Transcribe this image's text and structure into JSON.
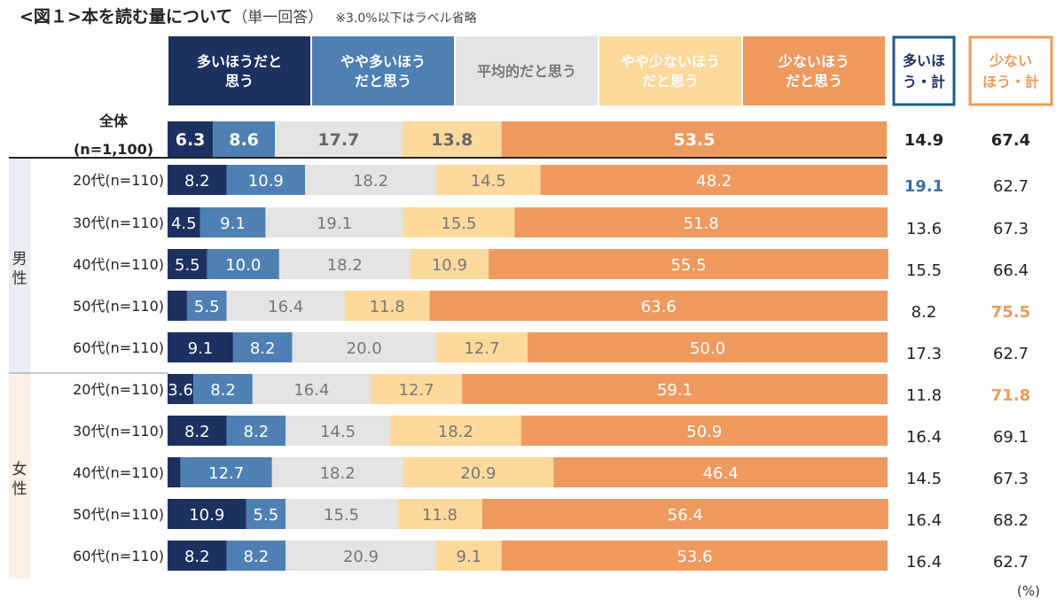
{
  "chart_data": {
    "type": "bar",
    "orientation": "horizontal-stacked-100",
    "title": "<図１>本を読む量について",
    "subtitle": "（単一回答）",
    "note": "※3.0%以下はラベル省略",
    "unit": "(%)",
    "label_threshold": 3.0,
    "legend": [
      "多いほうだと思う",
      "やや多いほうだと思う",
      "平均的だと思う",
      "やや少ないほうだと思う",
      "少ないほうだと思う"
    ],
    "legend_display": [
      [
        "多いほうだと",
        "思う"
      ],
      [
        "やや多いほう",
        "だと思う"
      ],
      [
        "平均的だと思う"
      ],
      [
        "やや少ないほう",
        "だと思う"
      ],
      [
        "少ないほう",
        "だと思う"
      ]
    ],
    "colors": [
      "#1c3160",
      "#4f80b3",
      "#e4e4e4",
      "#fdd99c",
      "#ee9a5f"
    ],
    "total_headers": [
      [
        "多いほ",
        "う・計"
      ],
      [
        "少ない",
        "ほう・計"
      ]
    ],
    "total_colors": [
      "#1d5a8a",
      "#ef9a5a"
    ],
    "groups": [
      {
        "name": "男性",
        "rows": [
          1,
          2,
          3,
          4,
          5
        ],
        "color": "#e9edf4"
      },
      {
        "name": "女性",
        "rows": [
          6,
          7,
          8,
          9,
          10
        ],
        "color": "#fcefe3"
      }
    ],
    "rows": [
      {
        "label": [
          "全体",
          "(n=1,100)"
        ],
        "values": [
          6.3,
          8.6,
          17.7,
          13.8,
          53.5
        ],
        "totals": [
          "14.9",
          "67.4"
        ],
        "bold": true,
        "highlight": [
          null,
          null
        ]
      },
      {
        "label": [
          "20代(n=110)"
        ],
        "values": [
          8.2,
          10.9,
          18.2,
          14.5,
          48.2
        ],
        "totals": [
          "19.1",
          "62.7"
        ],
        "highlight": [
          "blue",
          null
        ]
      },
      {
        "label": [
          "30代(n=110)"
        ],
        "values": [
          4.5,
          9.1,
          19.1,
          15.5,
          51.8
        ],
        "totals": [
          "13.6",
          "67.3"
        ],
        "highlight": [
          null,
          null
        ]
      },
      {
        "label": [
          "40代(n=110)"
        ],
        "values": [
          5.5,
          10.0,
          18.2,
          10.9,
          55.5
        ],
        "totals": [
          "15.5",
          "66.4"
        ],
        "highlight": [
          null,
          null
        ]
      },
      {
        "label": [
          "50代(n=110)"
        ],
        "values": [
          2.7,
          5.5,
          16.4,
          11.8,
          63.6
        ],
        "totals": [
          "8.2",
          "75.5"
        ],
        "highlight": [
          null,
          "orange"
        ]
      },
      {
        "label": [
          "60代(n=110)"
        ],
        "values": [
          9.1,
          8.2,
          20.0,
          12.7,
          50.0
        ],
        "totals": [
          "17.3",
          "62.7"
        ],
        "highlight": [
          null,
          null
        ]
      },
      {
        "label": [
          "20代(n=110)"
        ],
        "values": [
          3.6,
          8.2,
          16.4,
          12.7,
          59.1
        ],
        "totals": [
          "11.8",
          "71.8"
        ],
        "highlight": [
          null,
          "orange"
        ]
      },
      {
        "label": [
          "30代(n=110)"
        ],
        "values": [
          8.2,
          8.2,
          14.5,
          18.2,
          50.9
        ],
        "totals": [
          "16.4",
          "69.1"
        ],
        "highlight": [
          null,
          null
        ]
      },
      {
        "label": [
          "40代(n=110)"
        ],
        "values": [
          1.8,
          12.7,
          18.2,
          20.9,
          46.4
        ],
        "totals": [
          "14.5",
          "67.3"
        ],
        "highlight": [
          null,
          null
        ]
      },
      {
        "label": [
          "50代(n=110)"
        ],
        "values": [
          10.9,
          5.5,
          15.5,
          11.8,
          56.4
        ],
        "totals": [
          "16.4",
          "68.2"
        ],
        "highlight": [
          null,
          null
        ]
      },
      {
        "label": [
          "60代(n=110)"
        ],
        "values": [
          8.2,
          8.2,
          20.9,
          9.1,
          53.6
        ],
        "totals": [
          "16.4",
          "62.7"
        ],
        "highlight": [
          null,
          null
        ]
      }
    ]
  }
}
